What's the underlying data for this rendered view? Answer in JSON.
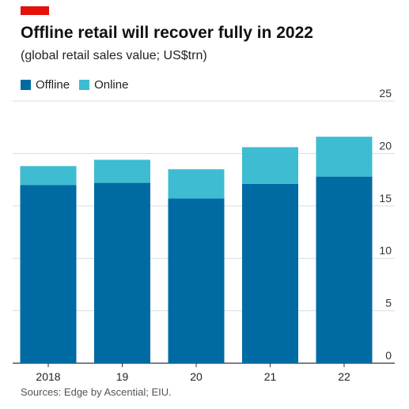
{
  "brand": {
    "accent_color": "#E3120B"
  },
  "header": {
    "title": "Offline retail will recover fully in 2022",
    "subtitle": "(global retail sales value; US$trn)"
  },
  "legend": {
    "items": [
      {
        "label": "Offline",
        "color": "#006BA2"
      },
      {
        "label": "Online",
        "color": "#3EBCD2"
      }
    ]
  },
  "chart_data": {
    "type": "bar",
    "stacked": true,
    "categories": [
      "2018",
      "19",
      "20",
      "21",
      "22"
    ],
    "series": [
      {
        "name": "Offline",
        "color": "#006BA2",
        "values": [
          17.0,
          17.2,
          15.7,
          17.1,
          17.8
        ]
      },
      {
        "name": "Online",
        "color": "#3EBCD2",
        "values": [
          1.8,
          2.2,
          2.8,
          3.5,
          3.8
        ]
      }
    ],
    "ylim": [
      0,
      25
    ],
    "yticks": [
      "0",
      "5",
      "10",
      "15",
      "20",
      "25"
    ],
    "y_axis_position": "right",
    "grid": true,
    "legend_position": "top-left"
  },
  "footer": {
    "source": "Sources: Edge by Ascential; EIU."
  }
}
